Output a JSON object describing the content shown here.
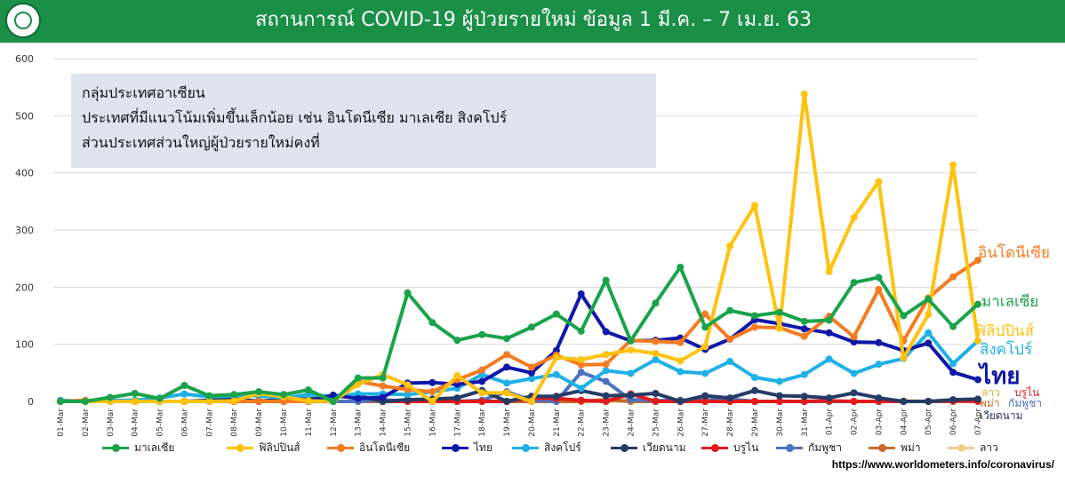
{
  "header": {
    "title": "สถานการณ์ COVID-19 ผู้ป่วยรายใหม่ ข้อมูล 1 มี.ค. – 7 เม.ย. 63",
    "logo_icon": "ministry-seal-logo",
    "color": "#1a8f47"
  },
  "note": {
    "line1": "กลุ่มประเทศอาเซียน",
    "line2": "ประเทศที่มีแนวโน้มเพิ่มขึ้นเล็กน้อย เช่น อินโดนีเซีย มาเลเซีย สิงคโปร์",
    "line3": "ส่วนประเทศส่วนใหญ่ผู้ป่วยรายใหม่คงที่"
  },
  "source": "https://www.worldometers.info/coronavirus/",
  "chart_data": {
    "type": "line",
    "ylim": [
      0,
      600
    ],
    "yticks": [
      0,
      100,
      200,
      300,
      400,
      500,
      600
    ],
    "grid": true,
    "legend_position": "bottom",
    "categories": [
      "01-Mar",
      "02-Mar",
      "03-Mar",
      "04-Mar",
      "05-Mar",
      "06-Mar",
      "07-Mar",
      "08-Mar",
      "09-Mar",
      "10-Mar",
      "11-Mar",
      "12-Mar",
      "13-Mar",
      "14-Mar",
      "15-Mar",
      "16-Mar",
      "17-Mar",
      "18-Mar",
      "19-Mar",
      "20-Mar",
      "21-Mar",
      "22-Mar",
      "23-Mar",
      "24-Mar",
      "25-Mar",
      "26-Mar",
      "27-Mar",
      "28-Mar",
      "29-Mar",
      "30-Mar",
      "31-Mar",
      "01-Apr",
      "02-Apr",
      "03-Apr",
      "04-Apr",
      "05-Apr",
      "06-Apr",
      "07-Apr"
    ],
    "series": [
      {
        "name": "มาเลเซีย",
        "color": "#1aa34a",
        "values": [
          0,
          0,
          7,
          14,
          5,
          28,
          10,
          12,
          17,
          12,
          20,
          0,
          41,
          41,
          190,
          138,
          107,
          117,
          110,
          130,
          153,
          123,
          212,
          106,
          172,
          235,
          130,
          159,
          150,
          156,
          140,
          142,
          208,
          217,
          150,
          179,
          131,
          170
        ]
      },
      {
        "name": "ฟิลิปปินส์",
        "color": "#ffc20e",
        "values": [
          0,
          0,
          0,
          0,
          0,
          0,
          0,
          1,
          14,
          8,
          1,
          0,
          30,
          47,
          29,
          0,
          45,
          15,
          15,
          0,
          77,
          73,
          82,
          90,
          84,
          71,
          96,
          272,
          343,
          128,
          538,
          227,
          322,
          385,
          76,
          152,
          414,
          106
        ]
      },
      {
        "name": "อินโดนีเซีย",
        "color": "#f47b20",
        "values": [
          0,
          2,
          0,
          0,
          0,
          0,
          0,
          0,
          0,
          0,
          0,
          0,
          35,
          27,
          21,
          17,
          38,
          55,
          82,
          60,
          81,
          64,
          65,
          107,
          105,
          103,
          153,
          109,
          130,
          129,
          114,
          149,
          113,
          196,
          106,
          181,
          218,
          247
        ]
      },
      {
        "name": "ไทย",
        "color": "#1018a8",
        "values": [
          0,
          0,
          0,
          0,
          0,
          0,
          0,
          1,
          0,
          0,
          0,
          11,
          5,
          7,
          32,
          33,
          30,
          35,
          60,
          50,
          89,
          188,
          122,
          106,
          107,
          111,
          91,
          109,
          143,
          136,
          127,
          120,
          104,
          103,
          89,
          102,
          51,
          38
        ]
      },
      {
        "name": "สิงคโปร์",
        "color": "#1fb0e6",
        "values": [
          2,
          0,
          2,
          2,
          6,
          13,
          8,
          10,
          10,
          6,
          12,
          9,
          13,
          13,
          12,
          17,
          23,
          47,
          32,
          40,
          47,
          23,
          54,
          49,
          73,
          52,
          49,
          70,
          42,
          35,
          47,
          74,
          49,
          65,
          75,
          120,
          66,
          106
        ]
      },
      {
        "name": "เวียดนาม",
        "color": "#243c66",
        "values": [
          0,
          0,
          0,
          0,
          0,
          0,
          2,
          5,
          0,
          4,
          4,
          8,
          9,
          0,
          3,
          4,
          6,
          19,
          0,
          9,
          9,
          19,
          10,
          11,
          14,
          0,
          10,
          6,
          19,
          10,
          9,
          6,
          15,
          6,
          0,
          0,
          3,
          4
        ]
      },
      {
        "name": "บรูไน",
        "color": "#e31a1c",
        "values": [
          0,
          0,
          0,
          0,
          0,
          0,
          0,
          0,
          1,
          0,
          1,
          8,
          10,
          0,
          0,
          0,
          0,
          0,
          0,
          6,
          5,
          2,
          0,
          13,
          0,
          0,
          0,
          0,
          0,
          0,
          0,
          1,
          0,
          0,
          0,
          0,
          1,
          0
        ]
      },
      {
        "name": "กัมพูชา",
        "color": "#4f71be",
        "values": [
          0,
          0,
          0,
          0,
          0,
          0,
          0,
          1,
          0,
          0,
          0,
          0,
          0,
          3,
          0,
          0,
          0,
          2,
          17,
          2,
          0,
          51,
          35,
          3,
          1,
          2,
          2,
          4,
          0,
          0,
          0,
          0,
          0,
          0,
          0,
          0,
          1,
          2
        ]
      },
      {
        "name": "พม่า",
        "color": "#c86a2a",
        "values": [
          0,
          0,
          0,
          0,
          0,
          0,
          0,
          0,
          0,
          0,
          0,
          0,
          0,
          0,
          0,
          0,
          0,
          0,
          0,
          0,
          0,
          0,
          3,
          0,
          0,
          0,
          0,
          0,
          0,
          0,
          0,
          0,
          0,
          0,
          0,
          0,
          0,
          1
        ]
      },
      {
        "name": "ลาว",
        "color": "#f5cc8a",
        "values": [
          0,
          0,
          0,
          0,
          0,
          0,
          0,
          0,
          0,
          0,
          0,
          0,
          0,
          0,
          0,
          0,
          0,
          0,
          0,
          0,
          0,
          0,
          0,
          2,
          1,
          3,
          0,
          0,
          0,
          0,
          0,
          0,
          0,
          0,
          1,
          0,
          0,
          0
        ]
      }
    ],
    "end_labels": [
      {
        "text": "อินโดนีเซีย",
        "color": "#f47b20",
        "series": "อินโดนีเซีย"
      },
      {
        "text": "มาเลเซีย",
        "color": "#1aa34a",
        "series": "มาเลเซีย"
      },
      {
        "text": "ฟิลิปปินส์",
        "color": "#ffc20e",
        "series": "ฟิลิปปินส์"
      },
      {
        "text": "สิงคโปร์",
        "color": "#1fb0e6",
        "series": "สิงคโปร์"
      },
      {
        "text": "ไทย",
        "color": "#1018a8",
        "series": "ไทย"
      },
      {
        "text": "ลาว",
        "color": "#f5a623",
        "series": "ลาว"
      },
      {
        "text": "บรูไน",
        "color": "#e31a1c",
        "series": "บรูไน"
      },
      {
        "text": "พม่า",
        "color": "#c86a2a",
        "series": "พม่า"
      },
      {
        "text": "กัมพูชา",
        "color": "#4f71be",
        "series": "กัมพูชา"
      },
      {
        "text": "เวียดนาม",
        "color": "#243c66",
        "series": "เวียดนาม"
      }
    ]
  }
}
